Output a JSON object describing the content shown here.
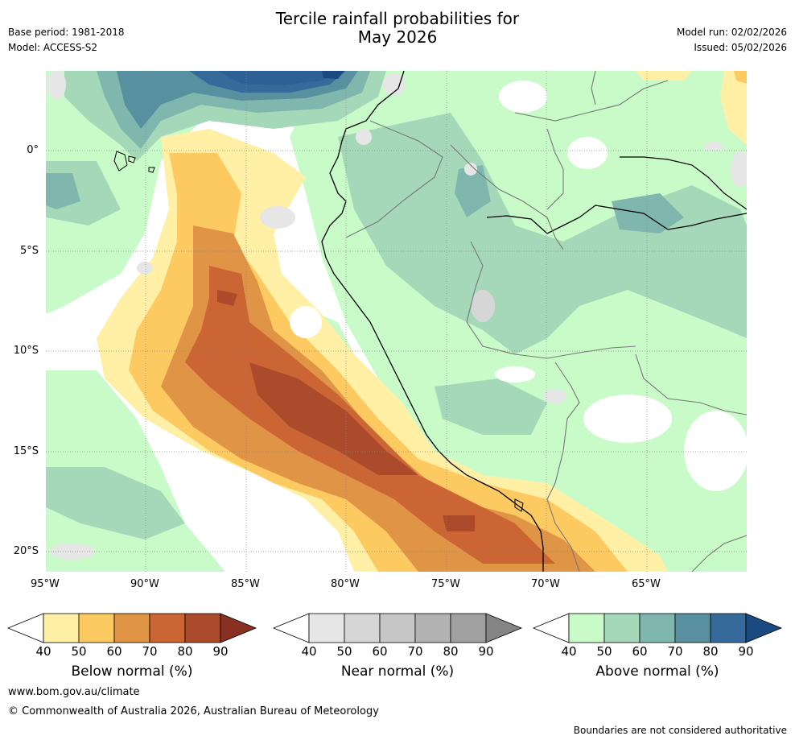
{
  "header": {
    "title_line1": "Tercile rainfall probabilities for",
    "title_line2": "May 2026",
    "base_period": "Base period: 1981-2018",
    "model": "Model: ACCESS-S2",
    "model_run": "Model run: 02/02/2026",
    "issued": "Issued: 05/02/2026"
  },
  "map": {
    "lat_labels": [
      "0°",
      "5°S",
      "10°S",
      "15°S",
      "20°S"
    ],
    "lon_labels": [
      "95°W",
      "90°W",
      "85°W",
      "80°W",
      "75°W",
      "70°W",
      "65°W"
    ]
  },
  "colorbars": [
    {
      "label": "Below normal (%)",
      "ticks": [
        "40",
        "50",
        "60",
        "70",
        "80",
        "90"
      ],
      "colors": [
        "#fff0a6",
        "#fdca62",
        "#e09446",
        "#cb6533",
        "#ab4b2b",
        "#8a3022"
      ]
    },
    {
      "label": "Near normal (%)",
      "ticks": [
        "40",
        "50",
        "60",
        "70",
        "80",
        "90"
      ],
      "colors": [
        "#e6e6e6",
        "#d6d6d6",
        "#c6c6c6",
        "#b3b3b3",
        "#a0a0a0",
        "#858585"
      ]
    },
    {
      "label": "Above normal (%)",
      "ticks": [
        "40",
        "50",
        "60",
        "70",
        "80",
        "90"
      ],
      "colors": [
        "#c9fbc9",
        "#a4d8b9",
        "#7fb6ad",
        "#5890a0",
        "#356a9b",
        "#1a4a80"
      ]
    }
  ],
  "footer": {
    "website": "www.bom.gov.au/climate",
    "copyright": "© Commonwealth of Australia 2026, Australian Bureau of Meteorology",
    "disclaimer": "Boundaries are not considered authoritative"
  }
}
